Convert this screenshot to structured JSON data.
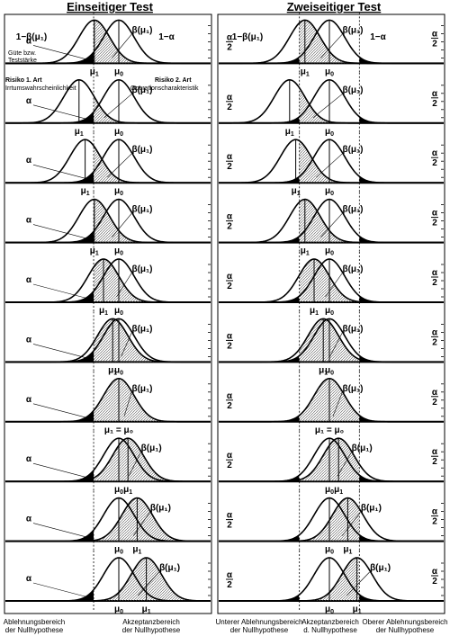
{
  "titles": {
    "left": "Einseitiger Test",
    "right": "Zweiseitiger Test"
  },
  "symbols": {
    "mu": "μ",
    "sub1": "1",
    "sub0": "0",
    "alpha": "α",
    "alpha_half_num": "α",
    "alpha_half_den": "2",
    "beta_mu1": "β(μ₁)",
    "one_minus_beta_mu1": "1−β(μ₁)",
    "one_minus_alpha": "1−α",
    "mu1_eq_mu0": "μ₁ = μ₀"
  },
  "annotations": {
    "guete": "Güte bzw.",
    "teststaerke": "Teststärke",
    "risiko1": "Risiko 1. Art",
    "irrtum": "Irrtumswahrscheinlichkeit",
    "risiko2": "Risiko 2. Art",
    "operations": "Operationscharakteristik"
  },
  "footer": {
    "left_reject_1": "Ablehnungsbereich",
    "left_reject_2": "der Nullhypothese",
    "left_accept_1": "Akzeptanzbereich",
    "left_accept_2": "der Nullhypothese",
    "right_lower_1": "Unterer Ablehnungsbereich",
    "right_lower_2": "der Nullhypothese",
    "right_accept_1": "Akzeptanzbereich",
    "right_accept_2": "d. Nullhypothese",
    "right_upper_1": "Oberer Ablehnungsbereich",
    "right_upper_2": "der Nullhypothese"
  },
  "rows_mu1_offset_sigma": [
    -1.6,
    -2.6,
    -2.2,
    -1.6,
    -1.0,
    -0.4,
    0.0,
    0.6,
    1.2,
    1.8
  ]
}
